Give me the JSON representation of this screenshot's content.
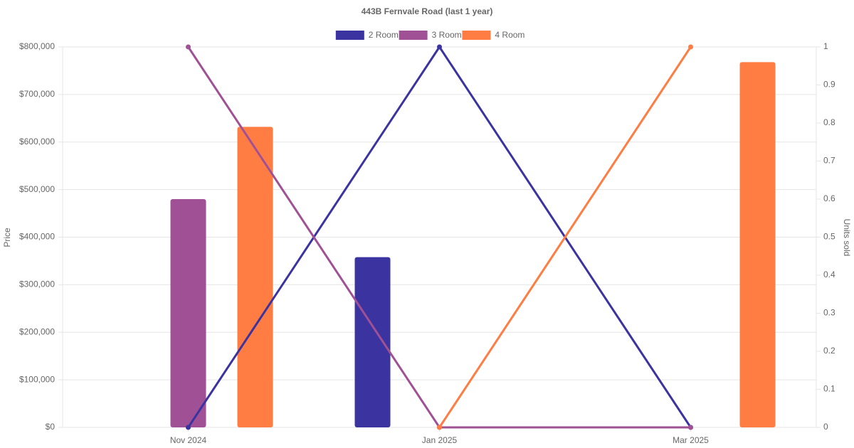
{
  "chart_data": {
    "type": "bar-line",
    "title": "443B Fernvale Road (last 1 year)",
    "y_label": "Price",
    "y2_label": "Units sold",
    "categories": [
      "Nov 2024",
      "Jan 2025",
      "Mar 2025"
    ],
    "series": [
      {
        "name": "2 Room",
        "color": "#3a33a0",
        "values": [
          null,
          358000,
          null
        ],
        "units_sold": [
          0,
          1,
          0
        ]
      },
      {
        "name": "3 Room",
        "color": "#a05195",
        "values": [
          480000,
          null,
          null
        ],
        "units_sold": [
          1,
          0,
          0
        ]
      },
      {
        "name": "4 Room",
        "color": "#ff7c43",
        "values": [
          632000,
          null,
          768000
        ],
        "units_sold": [
          null,
          0,
          1
        ]
      }
    ],
    "ylim": [
      0,
      800000
    ],
    "yticks": [
      {
        "value": 0,
        "label": "$0"
      },
      {
        "value": 100000,
        "label": "$100,000"
      },
      {
        "value": 200000,
        "label": "$200,000"
      },
      {
        "value": 300000,
        "label": "$300,000"
      },
      {
        "value": 400000,
        "label": "$400,000"
      },
      {
        "value": 500000,
        "label": "$500,000"
      },
      {
        "value": 600000,
        "label": "$600,000"
      },
      {
        "value": 700000,
        "label": "$700,000"
      },
      {
        "value": 800000,
        "label": "$800,000"
      }
    ],
    "y2lim": [
      0,
      1
    ],
    "y2ticks": [
      0,
      0.1,
      0.2,
      0.3,
      0.4,
      0.5,
      0.6,
      0.7,
      0.8,
      0.9,
      1
    ],
    "grid": true,
    "legend": "top"
  }
}
